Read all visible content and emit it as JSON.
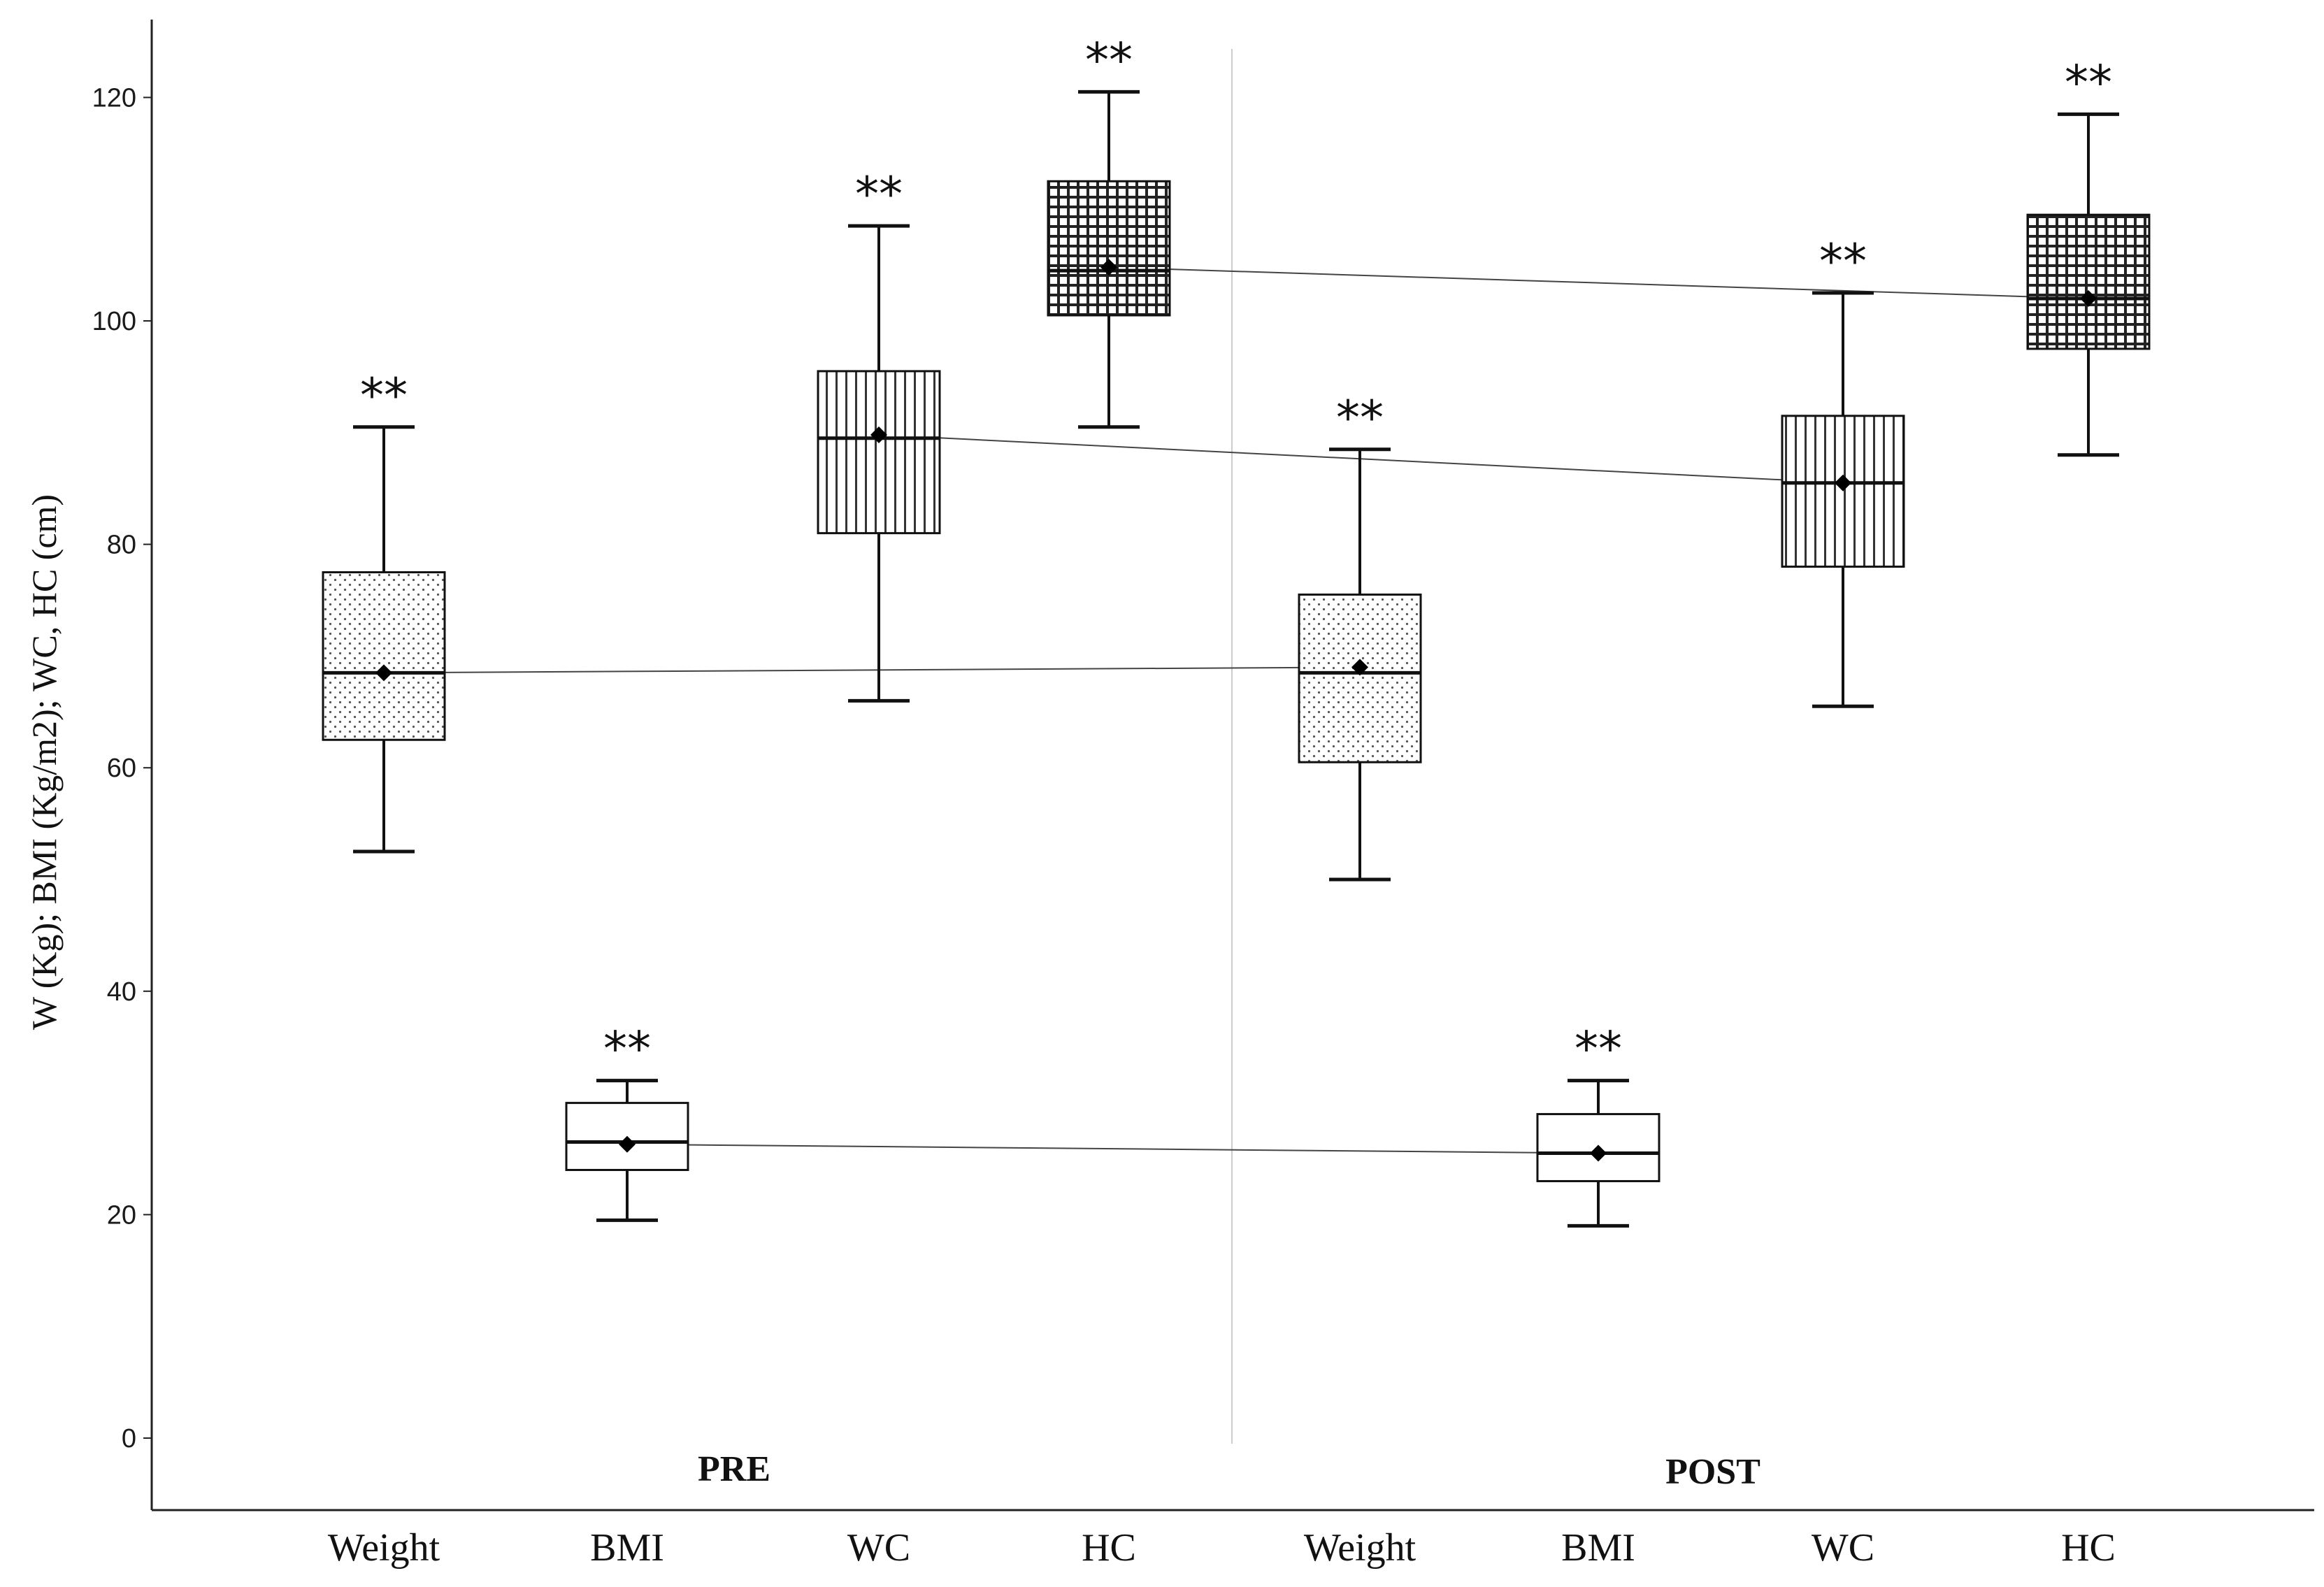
{
  "chart_data": {
    "type": "boxplot",
    "ylabel": "W (Kg); BMI (Kg/m2); WC, HC (cm)",
    "ylim": [
      0,
      125
    ],
    "yticks": [
      0,
      20,
      40,
      60,
      80,
      100,
      120
    ],
    "groups": [
      "PRE",
      "POST"
    ],
    "categories": [
      "Weight",
      "BMI",
      "WC",
      "HC",
      "Weight",
      "BMI",
      "WC",
      "HC"
    ],
    "significance_marker": "**",
    "boxes": [
      {
        "group": "PRE",
        "label": "Weight",
        "pattern": "dots",
        "whisker_low": 52.5,
        "q1": 62.5,
        "median": 68.5,
        "q3": 77.5,
        "whisker_high": 90.5,
        "mean": 68.5
      },
      {
        "group": "PRE",
        "label": "BMI",
        "pattern": "none",
        "whisker_low": 19.5,
        "q1": 24.0,
        "median": 26.5,
        "q3": 30.0,
        "whisker_high": 32.0,
        "mean": 26.3
      },
      {
        "group": "PRE",
        "label": "WC",
        "pattern": "vlines",
        "whisker_low": 66.0,
        "q1": 81.0,
        "median": 89.5,
        "q3": 95.5,
        "whisker_high": 108.5,
        "mean": 89.8
      },
      {
        "group": "PRE",
        "label": "HC",
        "pattern": "grid",
        "whisker_low": 90.5,
        "q1": 100.5,
        "median": 104.5,
        "q3": 112.5,
        "whisker_high": 120.5,
        "mean": 104.8
      },
      {
        "group": "POST",
        "label": "Weight",
        "pattern": "dots",
        "whisker_low": 50.0,
        "q1": 60.5,
        "median": 68.5,
        "q3": 75.5,
        "whisker_high": 88.5,
        "mean": 69.0
      },
      {
        "group": "POST",
        "label": "BMI",
        "pattern": "none",
        "whisker_low": 19.0,
        "q1": 23.0,
        "median": 25.5,
        "q3": 29.0,
        "whisker_high": 32.0,
        "mean": 25.5
      },
      {
        "group": "POST",
        "label": "WC",
        "pattern": "vlines",
        "whisker_low": 65.5,
        "q1": 78.0,
        "median": 85.5,
        "q3": 91.5,
        "whisker_high": 102.5,
        "mean": 85.5
      },
      {
        "group": "POST",
        "label": "HC",
        "pattern": "grid",
        "whisker_low": 88.0,
        "q1": 97.5,
        "median": 102.0,
        "q3": 109.5,
        "whisker_high": 118.5,
        "mean": 102.0
      }
    ],
    "mean_lines": [
      {
        "label": "Weight",
        "pre_mean": 68.5,
        "post_mean": 69.0
      },
      {
        "label": "BMI",
        "pre_mean": 26.3,
        "post_mean": 25.5
      },
      {
        "label": "WC",
        "pre_mean": 89.8,
        "post_mean": 85.5
      },
      {
        "label": "HC",
        "pre_mean": 104.8,
        "post_mean": 102.0
      }
    ]
  }
}
